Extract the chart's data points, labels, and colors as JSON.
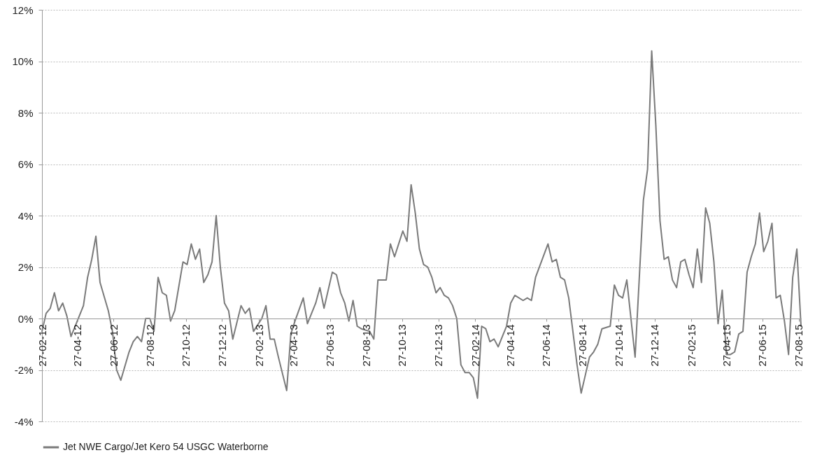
{
  "chart_data": {
    "type": "line",
    "x": [
      "2012-02-27",
      "2012-03-05",
      "2012-03-12",
      "2012-03-19",
      "2012-03-26",
      "2012-04-02",
      "2012-04-09",
      "2012-04-16",
      "2012-04-23",
      "2012-05-07",
      "2012-05-14",
      "2012-05-21",
      "2012-05-28",
      "2012-06-04",
      "2012-06-18",
      "2012-06-25",
      "2012-07-02",
      "2012-07-09",
      "2012-07-23",
      "2012-07-30",
      "2012-08-06",
      "2012-08-13",
      "2012-08-20",
      "2012-08-27",
      "2012-09-03",
      "2012-09-10",
      "2012-09-17",
      "2012-09-24",
      "2012-10-01",
      "2012-10-08",
      "2012-10-22",
      "2012-10-29",
      "2012-11-05",
      "2012-11-12",
      "2012-11-19",
      "2012-11-26",
      "2012-12-03",
      "2012-12-10",
      "2012-12-17",
      "2012-12-24",
      "2012-12-31",
      "2013-01-07",
      "2013-01-14",
      "2013-01-28",
      "2013-02-04",
      "2013-02-11",
      "2013-02-18",
      "2013-03-04",
      "2013-03-11",
      "2013-03-18",
      "2013-03-25",
      "2013-04-01",
      "2013-04-15",
      "2013-04-22",
      "2013-04-29",
      "2013-05-13",
      "2013-05-20",
      "2013-06-03",
      "2013-06-10",
      "2013-06-17",
      "2013-07-01",
      "2013-07-08",
      "2013-07-15",
      "2013-07-22",
      "2013-07-29",
      "2013-08-05",
      "2013-08-12",
      "2013-08-19",
      "2013-09-02",
      "2013-09-09",
      "2013-09-16",
      "2013-09-30",
      "2013-10-07",
      "2013-10-14",
      "2013-10-21",
      "2013-10-28",
      "2013-11-04",
      "2013-11-11",
      "2013-11-18",
      "2013-11-25",
      "2013-12-02",
      "2013-12-09",
      "2013-12-16",
      "2013-12-23",
      "2013-12-30",
      "2014-01-06",
      "2014-01-13",
      "2014-01-20",
      "2014-01-27",
      "2014-02-03",
      "2014-02-10",
      "2014-02-17",
      "2014-02-24",
      "2014-03-03",
      "2014-03-10",
      "2014-03-17",
      "2014-03-24",
      "2014-03-31",
      "2014-04-07",
      "2014-04-14",
      "2014-04-21",
      "2014-04-28",
      "2014-05-05",
      "2014-05-19",
      "2014-05-26",
      "2014-06-02",
      "2014-06-09",
      "2014-06-30",
      "2014-07-07",
      "2014-07-14",
      "2014-07-21",
      "2014-07-28",
      "2014-08-04",
      "2014-08-18",
      "2014-08-25",
      "2014-09-01",
      "2014-09-08",
      "2014-09-15",
      "2014-09-22",
      "2014-09-29",
      "2014-10-13",
      "2014-10-20",
      "2014-10-27",
      "2014-11-03",
      "2014-11-10",
      "2014-11-24",
      "2014-12-08",
      "2014-12-15",
      "2014-12-22",
      "2014-12-29",
      "2015-01-05",
      "2015-01-12",
      "2015-01-19",
      "2015-01-26",
      "2015-02-02",
      "2015-02-09",
      "2015-02-16",
      "2015-02-23",
      "2015-03-02",
      "2015-03-09",
      "2015-03-16",
      "2015-03-23",
      "2015-03-30",
      "2015-04-06",
      "2015-04-13",
      "2015-04-20",
      "2015-04-27",
      "2015-05-04",
      "2015-05-11",
      "2015-05-18",
      "2015-05-25",
      "2015-06-01",
      "2015-06-08",
      "2015-06-15",
      "2015-06-22",
      "2015-06-29",
      "2015-07-06",
      "2015-07-13",
      "2015-07-20",
      "2015-07-27",
      "2015-08-03",
      "2015-08-10",
      "2015-08-17",
      "2015-08-24",
      "2015-08-31"
    ],
    "series": [
      {
        "name": "Jet NWE Cargo/Jet Kero 54 USGC Waterborne",
        "color": "#7a7a7a",
        "values": [
          -0.5,
          0.2,
          0.4,
          1.0,
          0.3,
          0.6,
          0.1,
          -0.7,
          -0.3,
          0.5,
          1.6,
          2.3,
          3.2,
          1.4,
          0.3,
          -0.5,
          -2.0,
          -2.4,
          -1.3,
          -0.9,
          -0.7,
          -0.9,
          0.0,
          0.0,
          -0.5,
          1.6,
          1.0,
          0.9,
          -0.1,
          0.3,
          2.2,
          2.1,
          2.9,
          2.3,
          2.7,
          1.4,
          1.7,
          2.2,
          4.0,
          2.0,
          0.6,
          0.3,
          -0.8,
          0.5,
          0.2,
          0.4,
          -0.5,
          0.0,
          0.5,
          -0.8,
          -0.8,
          -1.5,
          -2.8,
          -0.6,
          -0.1,
          0.8,
          -0.2,
          0.6,
          1.2,
          0.4,
          1.8,
          1.7,
          1.0,
          0.6,
          -0.1,
          0.7,
          -0.3,
          -0.4,
          -0.5,
          -0.8,
          1.5,
          1.5,
          2.9,
          2.4,
          2.9,
          3.4,
          3.0,
          5.2,
          4.1,
          2.7,
          2.1,
          2.0,
          1.6,
          1.0,
          1.2,
          0.9,
          0.8,
          0.5,
          0.0,
          -1.8,
          -2.1,
          -2.1,
          -2.3,
          -3.1,
          -0.3,
          -0.4,
          -0.9,
          -0.8,
          -1.1,
          -0.7,
          -0.3,
          0.6,
          0.9,
          0.7,
          0.8,
          0.7,
          1.6,
          2.9,
          2.2,
          2.3,
          1.6,
          1.5,
          0.8,
          -1.8,
          -2.9,
          -2.2,
          -1.5,
          -1.3,
          -1.0,
          -0.4,
          -0.3,
          1.3,
          0.9,
          0.8,
          1.5,
          -1.5,
          4.6,
          5.8,
          10.4,
          7.5,
          3.8,
          2.3,
          2.4,
          1.5,
          1.2,
          2.2,
          2.3,
          1.7,
          1.2,
          2.7,
          1.4,
          4.3,
          3.7,
          2.2,
          -0.2,
          1.1,
          -1.4,
          -1.4,
          -1.3,
          -0.6,
          -0.5,
          1.8,
          2.4,
          2.9,
          4.1,
          2.6,
          3.0,
          3.7,
          0.8,
          0.9,
          -0.1,
          -1.4,
          1.6,
          2.7,
          -0.3
        ]
      }
    ],
    "xlim": [
      "2012-02-27",
      "2015-08-31"
    ],
    "xticks": [
      {
        "value": "2012-02-27",
        "label": "27-02-12"
      },
      {
        "value": "2012-04-27",
        "label": "27-04-12"
      },
      {
        "value": "2012-06-27",
        "label": "27-06-12"
      },
      {
        "value": "2012-08-27",
        "label": "27-08-12"
      },
      {
        "value": "2012-10-27",
        "label": "27-10-12"
      },
      {
        "value": "2012-12-27",
        "label": "27-12-12"
      },
      {
        "value": "2013-02-27",
        "label": "27-02-13"
      },
      {
        "value": "2013-04-27",
        "label": "27-04-13"
      },
      {
        "value": "2013-06-27",
        "label": "27-06-13"
      },
      {
        "value": "2013-08-27",
        "label": "27-08-13"
      },
      {
        "value": "2013-10-27",
        "label": "27-10-13"
      },
      {
        "value": "2013-12-27",
        "label": "27-12-13"
      },
      {
        "value": "2014-02-27",
        "label": "27-02-14"
      },
      {
        "value": "2014-04-27",
        "label": "27-04-14"
      },
      {
        "value": "2014-06-27",
        "label": "27-06-14"
      },
      {
        "value": "2014-08-27",
        "label": "27-08-14"
      },
      {
        "value": "2014-10-27",
        "label": "27-10-14"
      },
      {
        "value": "2014-12-27",
        "label": "27-12-14"
      },
      {
        "value": "2015-02-27",
        "label": "27-02-15"
      },
      {
        "value": "2015-04-27",
        "label": "27-04-15"
      },
      {
        "value": "2015-06-27",
        "label": "27-06-15"
      },
      {
        "value": "2015-08-27",
        "label": "27-08-15"
      }
    ],
    "ylim": [
      -4,
      12
    ],
    "yticks": [
      {
        "value": -4,
        "label": "-4%"
      },
      {
        "value": -2,
        "label": "-2%"
      },
      {
        "value": 0,
        "label": "0%"
      },
      {
        "value": 2,
        "label": "2%"
      },
      {
        "value": 4,
        "label": "4%"
      },
      {
        "value": 6,
        "label": "6%"
      },
      {
        "value": 8,
        "label": "8%"
      },
      {
        "value": 10,
        "label": "10%"
      },
      {
        "value": 12,
        "label": "12%"
      }
    ],
    "grid": "y",
    "legend": "bottom"
  }
}
